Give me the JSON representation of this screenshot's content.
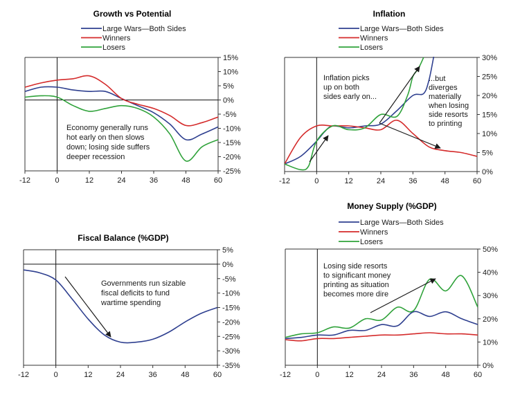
{
  "chart_data": [
    {
      "type": "line",
      "title": "Growth vs Potential",
      "xlim": [
        -12,
        60
      ],
      "ylim": [
        -25,
        15
      ],
      "x_ticks": [
        "-12",
        "0",
        "12",
        "24",
        "36",
        "48",
        "60"
      ],
      "y_ticks": [
        "15%",
        "10%",
        "5%",
        "0%",
        "-5%",
        "-10%",
        "-15%",
        "-20%",
        "-25%"
      ],
      "y_axis_side": "right",
      "legend": "top",
      "colors": [
        "#2e3f8f",
        "#d42a2a",
        "#2fa23a"
      ],
      "series": [
        {
          "name": "Large Wars—Both Sides",
          "x": [
            -12,
            -6,
            0,
            6,
            12,
            18,
            24,
            30,
            36,
            42,
            48,
            54,
            60
          ],
          "y": [
            3,
            4.5,
            4.5,
            3.5,
            3,
            3,
            0.5,
            -2,
            -4.5,
            -8.5,
            -14,
            -12,
            -9.5
          ]
        },
        {
          "name": "Winners",
          "x": [
            -12,
            -6,
            0,
            6,
            12,
            18,
            24,
            30,
            36,
            42,
            48,
            54,
            60
          ],
          "y": [
            4.5,
            6,
            7,
            7.5,
            8.5,
            5.5,
            0.5,
            -1.5,
            -3,
            -5.5,
            -9,
            -8,
            -6
          ]
        },
        {
          "name": "Losers",
          "x": [
            -12,
            -6,
            0,
            6,
            12,
            18,
            24,
            30,
            36,
            42,
            48,
            54,
            60
          ],
          "y": [
            1,
            1.5,
            1,
            -2,
            -4,
            -3,
            -2,
            -3,
            -6,
            -12,
            -21.5,
            -16.5,
            -14
          ]
        }
      ],
      "annotations": [
        {
          "lines": [
            "Economy generally runs",
            "hot early on then slows",
            "down; losing side suffers",
            "deeper recession"
          ]
        }
      ]
    },
    {
      "type": "line",
      "title": "Inflation",
      "xlim": [
        -12,
        60
      ],
      "ylim": [
        0,
        30
      ],
      "x_ticks": [
        "-12",
        "0",
        "12",
        "24",
        "36",
        "48",
        "60"
      ],
      "y_ticks": [
        "30%",
        "25%",
        "20%",
        "15%",
        "10%",
        "5%",
        "0%"
      ],
      "y_axis_side": "right",
      "legend": "top",
      "colors": [
        "#2e3f8f",
        "#d42a2a",
        "#2fa23a"
      ],
      "series": [
        {
          "name": "Large Wars—Both Sides",
          "x": [
            -12,
            -6,
            0,
            3,
            6,
            12,
            18,
            24,
            30,
            36,
            40,
            42,
            44
          ],
          "y": [
            2,
            4,
            8,
            10.5,
            12,
            11.5,
            12,
            12.5,
            16,
            20,
            20.5,
            24,
            31
          ]
        },
        {
          "name": "Winners",
          "x": [
            -12,
            -6,
            0,
            6,
            12,
            18,
            24,
            30,
            36,
            42,
            48,
            54,
            60
          ],
          "y": [
            2,
            9,
            12,
            12,
            12,
            11.5,
            11,
            13.5,
            10,
            6.5,
            5.5,
            5,
            4
          ]
        },
        {
          "name": "Losers",
          "x": [
            -12,
            -6,
            -3,
            0,
            6,
            12,
            18,
            24,
            30,
            34,
            36,
            38,
            40
          ],
          "y": [
            2,
            0.5,
            1.5,
            8,
            12,
            11,
            11.5,
            15,
            14.5,
            20,
            25,
            27,
            30
          ]
        }
      ],
      "annotations": [
        {
          "lines": [
            "Inflation picks",
            "up on both",
            "sides early on..."
          ]
        },
        {
          "lines": [
            "...but",
            "diverges",
            "materially",
            "when losing",
            "side resorts",
            "to printing"
          ]
        }
      ]
    },
    {
      "type": "line",
      "title": "Fiscal Balance (%GDP)",
      "xlim": [
        -12,
        60
      ],
      "ylim": [
        -35,
        5
      ],
      "x_ticks": [
        "-12",
        "0",
        "12",
        "24",
        "36",
        "48",
        "60"
      ],
      "y_ticks": [
        "5%",
        "0%",
        "-5%",
        "-10%",
        "-15%",
        "-20%",
        "-25%",
        "-30%",
        "-35%"
      ],
      "y_axis_side": "right",
      "colors": [
        "#2e3f8f"
      ],
      "series": [
        {
          "x": [
            -12,
            -6,
            0,
            6,
            12,
            18,
            24,
            30,
            36,
            42,
            48,
            54,
            60
          ],
          "y": [
            -2,
            -3,
            -5.5,
            -12,
            -19,
            -24.5,
            -27,
            -27,
            -26,
            -23.5,
            -20,
            -17,
            -15
          ]
        }
      ],
      "annotations": [
        {
          "lines": [
            "Governments run sizable",
            "fiscal deficits to fund",
            "wartime spending"
          ]
        }
      ]
    },
    {
      "type": "line",
      "title": "Money Supply (%GDP)",
      "xlim": [
        -12,
        60
      ],
      "ylim": [
        0,
        50
      ],
      "x_ticks": [
        "-12",
        "0",
        "12",
        "24",
        "36",
        "48",
        "60"
      ],
      "y_ticks": [
        "50%",
        "40%",
        "30%",
        "20%",
        "10%",
        "0%"
      ],
      "y_axis_side": "right",
      "legend": "top",
      "colors": [
        "#2e3f8f",
        "#d42a2a",
        "#2fa23a"
      ],
      "series": [
        {
          "name": "Large Wars—Both Sides",
          "x": [
            -12,
            -6,
            0,
            6,
            12,
            18,
            24,
            30,
            36,
            42,
            48,
            54,
            60
          ],
          "y": [
            11.5,
            12,
            13,
            13,
            15,
            15,
            17.5,
            17,
            23,
            21,
            23,
            20,
            17.5
          ]
        },
        {
          "name": "Winners",
          "x": [
            -12,
            -6,
            0,
            6,
            12,
            18,
            24,
            30,
            36,
            42,
            48,
            54,
            60
          ],
          "y": [
            11,
            10.5,
            11.5,
            11.5,
            12,
            12.5,
            13,
            13,
            13.5,
            14,
            13.5,
            13.5,
            13
          ]
        },
        {
          "name": "Losers",
          "x": [
            -12,
            -6,
            0,
            6,
            12,
            18,
            24,
            30,
            36,
            42,
            48,
            54,
            60
          ],
          "y": [
            12,
            13.5,
            14,
            16.5,
            16,
            20,
            19.5,
            25,
            23.5,
            37,
            32,
            38.5,
            25
          ]
        }
      ],
      "annotations": [
        {
          "lines": [
            "Losing side resorts",
            "to significant money",
            "printing as situation",
            "becomes more dire"
          ]
        }
      ]
    }
  ]
}
